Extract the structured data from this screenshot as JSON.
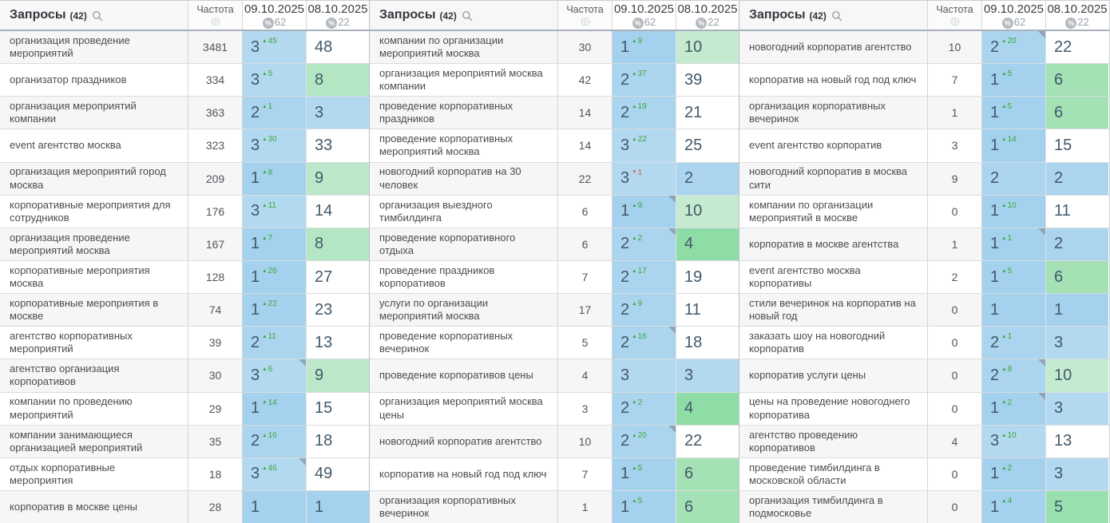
{
  "header": {
    "queries_label": "Запросы",
    "queries_count": "(42)",
    "frequency_label": "Частота",
    "dates": [
      {
        "label": "09.10.2025",
        "percent": "62"
      },
      {
        "label": "08.10.2025",
        "percent": "22"
      }
    ]
  },
  "icons": {
    "search": "magnifier",
    "frequency": "globe",
    "date_metric": "percent-badge",
    "cell_note": "corner-triangle"
  },
  "colors": {
    "pos_blue": {
      "1": "#a4d1ee",
      "2": "#abd5ef",
      "3": "#b2d9f0"
    },
    "pos_green": {
      "4": "#8edca6",
      "5": "#98e0ad",
      "6": "#a4e2b6",
      "7": "#abe4bb",
      "8": "#b3e6c2",
      "9": "#bce8c9",
      "10": "#c4ebd0"
    },
    "pos_none": "#ffffff",
    "change_up": "#3aa83a",
    "change_down": "#e05a4a",
    "note_marker": "#8699a6"
  },
  "groups": [
    {
      "rows": [
        {
          "query": "организация проведение мероприятий",
          "frequency": "3481",
          "pos1": "3",
          "change": {
            "dir": "up",
            "delta": "45"
          },
          "pos2": "48",
          "note": false
        },
        {
          "query": "организатор праздников",
          "frequency": "334",
          "pos1": "3",
          "change": {
            "dir": "up",
            "delta": "5"
          },
          "pos2": "8",
          "note": false
        },
        {
          "query": "организация мероприятий компании",
          "frequency": "363",
          "pos1": "2",
          "change": {
            "dir": "up",
            "delta": "1"
          },
          "pos2": "3",
          "note": false
        },
        {
          "query": "event агентство москва",
          "frequency": "323",
          "pos1": "3",
          "change": {
            "dir": "up",
            "delta": "30"
          },
          "pos2": "33",
          "note": false
        },
        {
          "query": "организация мероприятий город москва",
          "frequency": "209",
          "pos1": "1",
          "change": {
            "dir": "up",
            "delta": "8"
          },
          "pos2": "9",
          "note": false
        },
        {
          "query": "корпоративные мероприятия для сотрудников",
          "frequency": "176",
          "pos1": "3",
          "change": {
            "dir": "up",
            "delta": "11"
          },
          "pos2": "14",
          "note": false
        },
        {
          "query": "организация проведение мероприятий москва",
          "frequency": "167",
          "pos1": "1",
          "change": {
            "dir": "up",
            "delta": "7"
          },
          "pos2": "8",
          "note": false
        },
        {
          "query": "корпоративные мероприятия москва",
          "frequency": "128",
          "pos1": "1",
          "change": {
            "dir": "up",
            "delta": "26"
          },
          "pos2": "27",
          "note": false
        },
        {
          "query": "корпоративные мероприятия в москве",
          "frequency": "74",
          "pos1": "1",
          "change": {
            "dir": "up",
            "delta": "22"
          },
          "pos2": "23",
          "note": false
        },
        {
          "query": "агентство корпоративных мероприятий",
          "frequency": "39",
          "pos1": "2",
          "change": {
            "dir": "up",
            "delta": "11"
          },
          "pos2": "13",
          "note": false
        },
        {
          "query": "агентство организация корпоративов",
          "frequency": "30",
          "pos1": "3",
          "change": {
            "dir": "up",
            "delta": "6"
          },
          "pos2": "9",
          "note": true
        },
        {
          "query": "компании по проведению мероприятий",
          "frequency": "29",
          "pos1": "1",
          "change": {
            "dir": "up",
            "delta": "14"
          },
          "pos2": "15",
          "note": false
        },
        {
          "query": "компании занимающиеся организацией мероприятий",
          "frequency": "35",
          "pos1": "2",
          "change": {
            "dir": "up",
            "delta": "16"
          },
          "pos2": "18",
          "note": false
        },
        {
          "query": "отдых корпоративные мероприятия",
          "frequency": "18",
          "pos1": "3",
          "change": {
            "dir": "up",
            "delta": "46"
          },
          "pos2": "49",
          "note": true
        },
        {
          "query": "корпоратив в москве цены",
          "frequency": "28",
          "pos1": "1",
          "change": null,
          "pos2": "1",
          "note": false
        }
      ]
    },
    {
      "rows": [
        {
          "query": "компании по организации мероприятий москва",
          "frequency": "30",
          "pos1": "1",
          "change": {
            "dir": "up",
            "delta": "9"
          },
          "pos2": "10",
          "note": false
        },
        {
          "query": "организация мероприятий москва компании",
          "frequency": "42",
          "pos1": "2",
          "change": {
            "dir": "up",
            "delta": "37"
          },
          "pos2": "39",
          "note": false
        },
        {
          "query": "проведение корпоративных праздников",
          "frequency": "14",
          "pos1": "2",
          "change": {
            "dir": "up",
            "delta": "19"
          },
          "pos2": "21",
          "note": false
        },
        {
          "query": "проведение корпоративных мероприятий москва",
          "frequency": "14",
          "pos1": "3",
          "change": {
            "dir": "up",
            "delta": "22"
          },
          "pos2": "25",
          "note": false
        },
        {
          "query": "новогодний корпоратив на 30 человек",
          "frequency": "22",
          "pos1": "3",
          "change": {
            "dir": "down",
            "delta": "1"
          },
          "pos2": "2",
          "note": false
        },
        {
          "query": "организация выездного тимбилдинга",
          "frequency": "6",
          "pos1": "1",
          "change": {
            "dir": "up",
            "delta": "9"
          },
          "pos2": "10",
          "note": true
        },
        {
          "query": "проведение корпоративного отдыха",
          "frequency": "6",
          "pos1": "2",
          "change": {
            "dir": "up",
            "delta": "2"
          },
          "pos2": "4",
          "note": true
        },
        {
          "query": "проведение праздников корпоративов",
          "frequency": "7",
          "pos1": "2",
          "change": {
            "dir": "up",
            "delta": "17"
          },
          "pos2": "19",
          "note": false
        },
        {
          "query": "услуги по организации мероприятий москва",
          "frequency": "17",
          "pos1": "2",
          "change": {
            "dir": "up",
            "delta": "9"
          },
          "pos2": "11",
          "note": false
        },
        {
          "query": "проведение корпоративных вечеринок",
          "frequency": "5",
          "pos1": "2",
          "change": {
            "dir": "up",
            "delta": "16"
          },
          "pos2": "18",
          "note": true
        },
        {
          "query": "проведение корпоративов цены",
          "frequency": "4",
          "pos1": "3",
          "change": null,
          "pos2": "3",
          "note": false
        },
        {
          "query": "организация мероприятий москва цены",
          "frequency": "3",
          "pos1": "2",
          "change": {
            "dir": "up",
            "delta": "2"
          },
          "pos2": "4",
          "note": false
        },
        {
          "query": "новогодний корпоратив агентство",
          "frequency": "10",
          "pos1": "2",
          "change": {
            "dir": "up",
            "delta": "20"
          },
          "pos2": "22",
          "note": true
        },
        {
          "query": "корпоратив на новый год под ключ",
          "frequency": "7",
          "pos1": "1",
          "change": {
            "dir": "up",
            "delta": "5"
          },
          "pos2": "6",
          "note": false
        },
        {
          "query": "организация корпоративных вечеринок",
          "frequency": "1",
          "pos1": "1",
          "change": {
            "dir": "up",
            "delta": "5"
          },
          "pos2": "6",
          "note": false
        }
      ]
    },
    {
      "rows": [
        {
          "query": "новогодний корпоратив агентство",
          "frequency": "10",
          "pos1": "2",
          "change": {
            "dir": "up",
            "delta": "20"
          },
          "pos2": "22",
          "note": true
        },
        {
          "query": "корпоратив на новый год под ключ",
          "frequency": "7",
          "pos1": "1",
          "change": {
            "dir": "up",
            "delta": "5"
          },
          "pos2": "6",
          "note": false
        },
        {
          "query": "организация корпоративных вечеринок",
          "frequency": "1",
          "pos1": "1",
          "change": {
            "dir": "up",
            "delta": "5"
          },
          "pos2": "6",
          "note": false
        },
        {
          "query": "event агентство корпоратив",
          "frequency": "3",
          "pos1": "1",
          "change": {
            "dir": "up",
            "delta": "14"
          },
          "pos2": "15",
          "note": false
        },
        {
          "query": "новогодний корпоратив в москва сити",
          "frequency": "9",
          "pos1": "2",
          "change": null,
          "pos2": "2",
          "note": false
        },
        {
          "query": "компании по организации мероприятий в москве",
          "frequency": "0",
          "pos1": "1",
          "change": {
            "dir": "up",
            "delta": "10"
          },
          "pos2": "11",
          "note": false
        },
        {
          "query": "корпоратив в москве агентства",
          "frequency": "1",
          "pos1": "1",
          "change": {
            "dir": "up",
            "delta": "1"
          },
          "pos2": "2",
          "note": true
        },
        {
          "query": "event агентство москва корпоративы",
          "frequency": "2",
          "pos1": "1",
          "change": {
            "dir": "up",
            "delta": "5"
          },
          "pos2": "6",
          "note": false
        },
        {
          "query": "стили вечеринок на корпоратив на новый год",
          "frequency": "0",
          "pos1": "1",
          "change": null,
          "pos2": "1",
          "note": false
        },
        {
          "query": "заказать шоу на новогодний корпоратив",
          "frequency": "0",
          "pos1": "2",
          "change": {
            "dir": "up",
            "delta": "1"
          },
          "pos2": "3",
          "note": false
        },
        {
          "query": "корпоратив услуги цены",
          "frequency": "0",
          "pos1": "2",
          "change": {
            "dir": "up",
            "delta": "8"
          },
          "pos2": "10",
          "note": true
        },
        {
          "query": "цены на проведение новогоднего корпоратива",
          "frequency": "0",
          "pos1": "1",
          "change": {
            "dir": "up",
            "delta": "2"
          },
          "pos2": "3",
          "note": true
        },
        {
          "query": "агентство проведению корпоративов",
          "frequency": "4",
          "pos1": "3",
          "change": {
            "dir": "up",
            "delta": "10"
          },
          "pos2": "13",
          "note": false
        },
        {
          "query": "проведение тимбилдинга в московской области",
          "frequency": "0",
          "pos1": "1",
          "change": {
            "dir": "up",
            "delta": "2"
          },
          "pos2": "3",
          "note": false
        },
        {
          "query": "организация тимбилдинга в подмосковье",
          "frequency": "0",
          "pos1": "1",
          "change": {
            "dir": "up",
            "delta": "4"
          },
          "pos2": "5",
          "note": false
        }
      ]
    }
  ]
}
